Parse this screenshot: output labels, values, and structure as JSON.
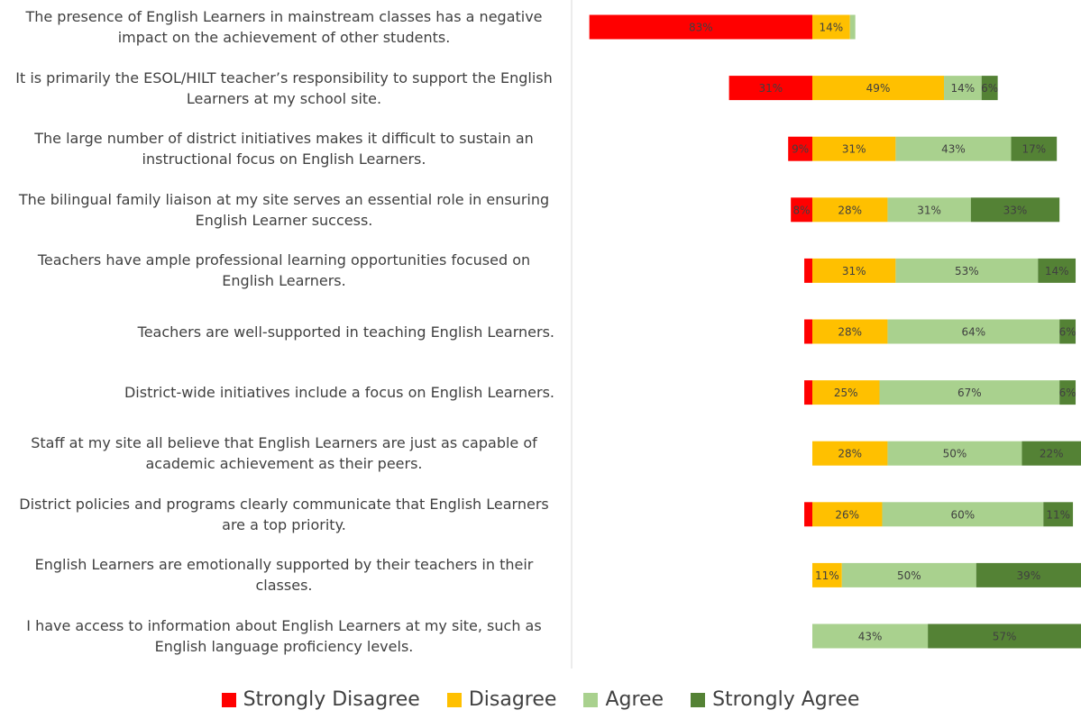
{
  "chart_data": {
    "type": "diverging_bar",
    "categories": [
      "The presence of English Learners in mainstream classes has a negative impact on the achievement of other students.",
      "It is primarily the ESOL/HILT teacher’s responsibility to support the English Learners at my school site.",
      "The large number of district initiatives makes it difficult to sustain an instructional focus on English Learners.",
      "The bilingual family liaison at my site serves an essential role in ensuring English Learner success.",
      "Teachers have ample professional learning opportunities focused on English Learners.",
      "Teachers are well-supported in teaching English Learners.",
      "District-wide initiatives include a focus on English Learners.",
      "Staff at my site all believe that English Learners are just as capable of academic achievement as their peers.",
      "District policies and programs clearly communicate that English Learners are a top priority.",
      "English Learners are emotionally supported by their teachers in their classes.",
      "I have access to information about English Learners at my site, such as English language proficiency levels."
    ],
    "series": [
      {
        "name": "Strongly Disagree",
        "color": "#ff0000",
        "side": "left",
        "values": [
          83,
          31,
          9,
          8,
          3,
          3,
          3,
          0,
          3,
          0,
          0
        ],
        "value_labels": [
          "83%",
          "31%",
          "9%",
          "8%",
          null,
          null,
          null,
          null,
          null,
          null,
          null
        ]
      },
      {
        "name": "Disagree",
        "color": "#ffc000",
        "side": "right",
        "values": [
          14,
          49,
          31,
          28,
          31,
          28,
          25,
          28,
          26,
          11,
          0
        ],
        "value_labels": [
          "14%",
          "49%",
          "31%",
          "28%",
          "31%",
          "28%",
          "25%",
          "28%",
          "26%",
          "11%",
          null
        ]
      },
      {
        "name": "Agree",
        "color": "#a9d18e",
        "side": "right",
        "values": [
          2,
          14,
          43,
          31,
          53,
          64,
          67,
          50,
          60,
          50,
          43
        ],
        "value_labels": [
          null,
          "14%",
          "43%",
          "31%",
          "53%",
          "64%",
          "67%",
          "50%",
          "60%",
          "50%",
          "43%"
        ]
      },
      {
        "name": "Strongly Agree",
        "color": "#548235",
        "side": "right",
        "values": [
          0,
          6,
          17,
          33,
          14,
          6,
          6,
          22,
          11,
          39,
          57
        ],
        "value_labels": [
          null,
          "6%",
          "17%",
          "33%",
          "14%",
          "6%",
          "6%",
          "22%",
          "11%",
          "39%",
          "57%"
        ]
      }
    ]
  }
}
